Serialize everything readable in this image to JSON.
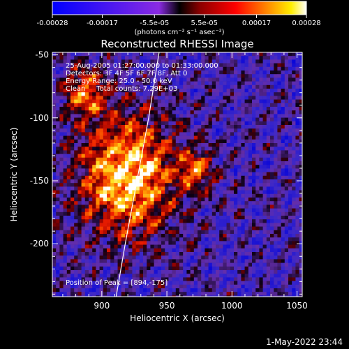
{
  "colorbar": {
    "ticks": [
      "-0.00028",
      "-0.00017",
      "-5.5e-05",
      "5.5e-05",
      "0.00017",
      "0.00028"
    ],
    "tick_values": [
      -0.00028,
      -0.00017,
      -5.5e-05,
      5.5e-05,
      0.00017,
      0.00028
    ],
    "range": [
      -0.00028,
      0.00028
    ],
    "units": "(photons cm⁻² s⁻¹ asec⁻²)"
  },
  "title": "Reconstructed RHESSI Image",
  "info": {
    "line1": "25-Aug-2005 01:27:00.000 to 01:33:00.000",
    "line2": "Detectors: 3F 4F 5F 6F 7F 8F, Att 0",
    "line3": "Energy Range: 25.0 - 50.0 keV",
    "line4": "Clean     Total counts: 7.29E+03"
  },
  "peak_label": "Position of Peak = [894,-175]",
  "timestamp": "1-May-2022 23:44",
  "chart_data": {
    "type": "heatmap",
    "title": "Reconstructed RHESSI Image",
    "xlabel": "Heliocentric X (arcsec)",
    "ylabel": "Heliocentric Y (arcsec)",
    "xlim": [
      862,
      1054
    ],
    "ylim": [
      -242,
      -48
    ],
    "xticks": [
      "900",
      "950",
      "1000",
      "1050"
    ],
    "xtick_values": [
      900,
      950,
      1000,
      1050
    ],
    "yticks": [
      "-50",
      "-100",
      "-150",
      "-200"
    ],
    "ytick_values": [
      -50,
      -100,
      -150,
      -200
    ],
    "colorbar_range": [
      -0.00028,
      0.00028
    ],
    "limb_curve": [
      [
        944,
        -48
      ],
      [
        936,
        -100
      ],
      [
        927,
        -150
      ],
      [
        918,
        -200
      ],
      [
        911,
        -242
      ]
    ],
    "peak": [
      894,
      -175
    ]
  }
}
